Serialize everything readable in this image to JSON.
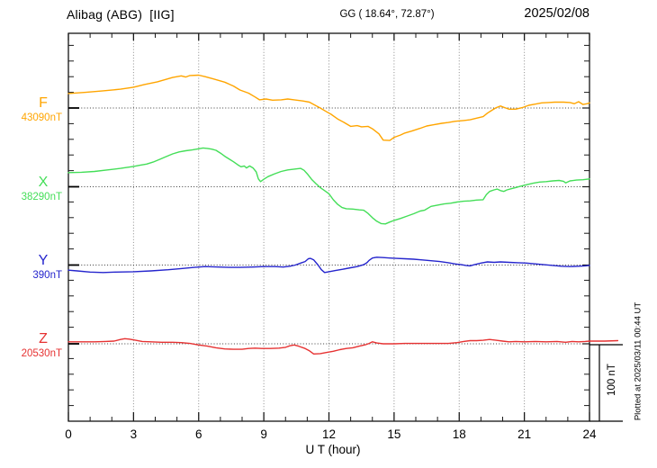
{
  "header": {
    "station_title": "Alibag (ABG)  [IIG]",
    "geo_coords": "GG ( 18.64°, 72.87°)",
    "date": "2025/02/08"
  },
  "footer_note": "Plotted at 2025/03/11 00:44 UT",
  "x_axis": {
    "label": "U T (hour)",
    "major_ticks": [
      0,
      3,
      6,
      9,
      12,
      15,
      18,
      21,
      24
    ],
    "minor_step_hours": 1,
    "range_hours": [
      0,
      24
    ]
  },
  "scale_bar": {
    "label": "100 nT",
    "span_nT": 100
  },
  "colors": {
    "frame": "#000000",
    "grid_dots": "#8a8a8a",
    "baseline_dots": "#3a3a3a",
    "tick": "#1a1a1a"
  },
  "chart_data": {
    "type": "line",
    "title": "Alibag (ABG) [IIG] magnetogram for 2025/02/08",
    "xlabel": "U T (hour)",
    "x_range": [
      0,
      24
    ],
    "x_units": "UT hours",
    "y_units": "nT offset from each component baseline",
    "scale_bar_nT": 100,
    "grid": "dotted vertical lines every 3 hours; dotted horizontal baseline per component",
    "legend_position": "left margin, one colored label per component",
    "series": [
      {
        "name": "F",
        "baseline_nT": 43090,
        "baseline_label": "43090nT",
        "color": "#FFA500",
        "points": [
          [
            0,
            18.5
          ],
          [
            0.8,
            20
          ],
          [
            1.6,
            22
          ],
          [
            2.4,
            24
          ],
          [
            3,
            26.5
          ],
          [
            3.5,
            30
          ],
          [
            4.1,
            33.5
          ],
          [
            4.8,
            39
          ],
          [
            5.2,
            41
          ],
          [
            5.4,
            39.5
          ],
          [
            5.6,
            41.5
          ],
          [
            6,
            42
          ],
          [
            6.3,
            40
          ],
          [
            6.7,
            37
          ],
          [
            7.2,
            33
          ],
          [
            7.6,
            28
          ],
          [
            7.9,
            23
          ],
          [
            8.3,
            19
          ],
          [
            8.6,
            14
          ],
          [
            8.8,
            10.5
          ],
          [
            9.1,
            11.5
          ],
          [
            9.4,
            10
          ],
          [
            9.8,
            10.5
          ],
          [
            10.1,
            11.5
          ],
          [
            10.4,
            10.5
          ],
          [
            10.8,
            9
          ],
          [
            11.1,
            7.5
          ],
          [
            11.3,
            4.5
          ],
          [
            11.6,
            0
          ],
          [
            11.9,
            -5
          ],
          [
            12.1,
            -8
          ],
          [
            12.4,
            -14
          ],
          [
            12.7,
            -18.5
          ],
          [
            13,
            -23.5
          ],
          [
            13.3,
            -22.5
          ],
          [
            13.5,
            -24
          ],
          [
            13.8,
            -23.5
          ],
          [
            14,
            -26.5
          ],
          [
            14.3,
            -33
          ],
          [
            14.5,
            -41
          ],
          [
            14.8,
            -41.5
          ],
          [
            15,
            -37.5
          ],
          [
            15.3,
            -34.5
          ],
          [
            15.5,
            -32
          ],
          [
            15.8,
            -29.5
          ],
          [
            16.2,
            -26
          ],
          [
            16.5,
            -23
          ],
          [
            16.8,
            -21.5
          ],
          [
            17.2,
            -19.5
          ],
          [
            17.5,
            -18.5
          ],
          [
            17.8,
            -17
          ],
          [
            18.2,
            -16
          ],
          [
            18.5,
            -15
          ],
          [
            18.8,
            -13
          ],
          [
            19.1,
            -11
          ],
          [
            19.3,
            -6.5
          ],
          [
            19.5,
            -3
          ],
          [
            19.7,
            0.5
          ],
          [
            19.9,
            2.5
          ],
          [
            20.1,
            0.5
          ],
          [
            20.3,
            -1.5
          ],
          [
            20.6,
            -1.5
          ],
          [
            20.9,
            0.5
          ],
          [
            21.2,
            3.5
          ],
          [
            21.5,
            5
          ],
          [
            21.8,
            6.5
          ],
          [
            22.1,
            7
          ],
          [
            22.4,
            7.5
          ],
          [
            22.8,
            7.5
          ],
          [
            23.1,
            7
          ],
          [
            23.3,
            5.5
          ],
          [
            23.5,
            8
          ],
          [
            23.7,
            4.5
          ],
          [
            23.9,
            5.5
          ],
          [
            24,
            6.5
          ]
        ]
      },
      {
        "name": "X",
        "baseline_nT": 38290,
        "baseline_label": "38290nT",
        "color": "#44DE58",
        "points": [
          [
            0,
            18
          ],
          [
            0.6,
            18.5
          ],
          [
            1.2,
            19.5
          ],
          [
            1.8,
            21.5
          ],
          [
            2.4,
            23.5
          ],
          [
            3,
            26
          ],
          [
            3.3,
            27.5
          ],
          [
            3.6,
            29
          ],
          [
            3.9,
            31.5
          ],
          [
            4.2,
            35
          ],
          [
            4.5,
            38.5
          ],
          [
            4.8,
            42
          ],
          [
            5.1,
            44.5
          ],
          [
            5.4,
            46
          ],
          [
            5.7,
            47
          ],
          [
            6,
            48.5
          ],
          [
            6.2,
            49.5
          ],
          [
            6.4,
            49
          ],
          [
            6.6,
            48
          ],
          [
            6.8,
            46.5
          ],
          [
            7,
            43
          ],
          [
            7.2,
            39
          ],
          [
            7.4,
            35.5
          ],
          [
            7.6,
            32
          ],
          [
            7.8,
            28
          ],
          [
            7.95,
            25.5
          ],
          [
            8.1,
            26.5
          ],
          [
            8.2,
            24
          ],
          [
            8.35,
            26.5
          ],
          [
            8.5,
            24
          ],
          [
            8.65,
            19
          ],
          [
            8.75,
            10
          ],
          [
            8.85,
            6.5
          ],
          [
            9,
            9.5
          ],
          [
            9.2,
            13
          ],
          [
            9.5,
            16.5
          ],
          [
            9.8,
            19.5
          ],
          [
            10.1,
            21.5
          ],
          [
            10.4,
            22.5
          ],
          [
            10.7,
            23.5
          ],
          [
            10.85,
            21
          ],
          [
            11,
            16.5
          ],
          [
            11.2,
            9.5
          ],
          [
            11.4,
            4
          ],
          [
            11.6,
            -1
          ],
          [
            11.8,
            -5
          ],
          [
            12,
            -9
          ],
          [
            12.2,
            -16.5
          ],
          [
            12.4,
            -22.5
          ],
          [
            12.6,
            -26.5
          ],
          [
            12.8,
            -28
          ],
          [
            13.1,
            -28.5
          ],
          [
            13.4,
            -29.5
          ],
          [
            13.6,
            -30
          ],
          [
            13.8,
            -34
          ],
          [
            14,
            -39.5
          ],
          [
            14.2,
            -44
          ],
          [
            14.4,
            -47
          ],
          [
            14.6,
            -47.5
          ],
          [
            14.8,
            -45
          ],
          [
            15,
            -43
          ],
          [
            15.3,
            -40.5
          ],
          [
            15.6,
            -37.5
          ],
          [
            15.9,
            -34.5
          ],
          [
            16.2,
            -31
          ],
          [
            16.4,
            -30
          ],
          [
            16.7,
            -25
          ],
          [
            17,
            -23.5
          ],
          [
            17.3,
            -22
          ],
          [
            17.6,
            -21
          ],
          [
            17.9,
            -19.5
          ],
          [
            18.2,
            -18.5
          ],
          [
            18.5,
            -18
          ],
          [
            18.8,
            -17
          ],
          [
            19.1,
            -16.5
          ],
          [
            19.25,
            -10
          ],
          [
            19.4,
            -6
          ],
          [
            19.6,
            -4
          ],
          [
            19.75,
            -3
          ],
          [
            19.9,
            -5
          ],
          [
            20.05,
            -6
          ],
          [
            20.2,
            -4
          ],
          [
            20.4,
            -2.5
          ],
          [
            20.6,
            -1
          ],
          [
            20.8,
            0.5
          ],
          [
            21.1,
            2.5
          ],
          [
            21.4,
            4.5
          ],
          [
            21.7,
            6
          ],
          [
            22,
            6.5
          ],
          [
            22.3,
            7.5
          ],
          [
            22.6,
            8
          ],
          [
            22.8,
            7
          ],
          [
            22.9,
            5
          ],
          [
            23.1,
            7.5
          ],
          [
            23.4,
            8.5
          ],
          [
            23.7,
            9
          ],
          [
            24,
            10
          ]
        ]
      },
      {
        "name": "Y",
        "baseline_nT": 390,
        "baseline_label": "390nT",
        "color": "#2525CD",
        "points": [
          [
            0,
            -6.5
          ],
          [
            0.4,
            -7.5
          ],
          [
            1,
            -9
          ],
          [
            1.6,
            -9.5
          ],
          [
            2.2,
            -9
          ],
          [
            3,
            -8.5
          ],
          [
            3.8,
            -7.5
          ],
          [
            4.6,
            -6
          ],
          [
            5.2,
            -4.5
          ],
          [
            5.8,
            -3
          ],
          [
            6.3,
            -2
          ],
          [
            6.9,
            -2.5
          ],
          [
            7.4,
            -3
          ],
          [
            7.9,
            -3
          ],
          [
            8.5,
            -2.5
          ],
          [
            9,
            -2
          ],
          [
            9.5,
            -2
          ],
          [
            9.9,
            -2.5
          ],
          [
            10.2,
            -1.5
          ],
          [
            10.45,
            0
          ],
          [
            10.7,
            2.5
          ],
          [
            10.9,
            4.5
          ],
          [
            11.05,
            8
          ],
          [
            11.15,
            8.5
          ],
          [
            11.3,
            6.5
          ],
          [
            11.5,
            0
          ],
          [
            11.65,
            -6
          ],
          [
            11.8,
            -9.5
          ],
          [
            12,
            -8.5
          ],
          [
            12.3,
            -7
          ],
          [
            12.6,
            -5.5
          ],
          [
            13,
            -3.5
          ],
          [
            13.3,
            -2
          ],
          [
            13.6,
            0.5
          ],
          [
            13.75,
            3
          ],
          [
            13.85,
            6
          ],
          [
            14,
            9
          ],
          [
            14.2,
            10
          ],
          [
            14.5,
            9.5
          ],
          [
            14.8,
            9
          ],
          [
            15.1,
            8.5
          ],
          [
            15.5,
            8
          ],
          [
            15.9,
            7.5
          ],
          [
            16.3,
            6.5
          ],
          [
            16.7,
            5.5
          ],
          [
            17.1,
            4.5
          ],
          [
            17.5,
            3
          ],
          [
            17.8,
            1.5
          ],
          [
            18.1,
            0.5
          ],
          [
            18.3,
            -0.5
          ],
          [
            18.5,
            -1
          ],
          [
            18.7,
            0.5
          ],
          [
            19,
            2.5
          ],
          [
            19.3,
            4
          ],
          [
            19.6,
            3.5
          ],
          [
            19.9,
            4
          ],
          [
            20.3,
            3.5
          ],
          [
            20.7,
            3
          ],
          [
            21.1,
            2.5
          ],
          [
            21.5,
            1.5
          ],
          [
            21.9,
            0.5
          ],
          [
            22.3,
            -0.5
          ],
          [
            22.7,
            -1.5
          ],
          [
            23.1,
            -2
          ],
          [
            23.5,
            -1.5
          ],
          [
            23.8,
            -1
          ],
          [
            24,
            -0.5
          ]
        ]
      },
      {
        "name": "Z",
        "baseline_nT": 20530,
        "baseline_label": "20530nT",
        "color": "#E63232",
        "points": [
          [
            0,
            2.5
          ],
          [
            0.6,
            2.5
          ],
          [
            1.2,
            2.5
          ],
          [
            1.7,
            3
          ],
          [
            2.1,
            3.5
          ],
          [
            2.4,
            5.5
          ],
          [
            2.6,
            6.5
          ],
          [
            2.8,
            6
          ],
          [
            3.1,
            4.5
          ],
          [
            3.4,
            3
          ],
          [
            3.8,
            2.5
          ],
          [
            4.3,
            2
          ],
          [
            4.8,
            2
          ],
          [
            5.2,
            1.5
          ],
          [
            5.6,
            0.5
          ],
          [
            6,
            -1.5
          ],
          [
            6.4,
            -3
          ],
          [
            6.8,
            -5
          ],
          [
            7.2,
            -6.5
          ],
          [
            7.6,
            -7
          ],
          [
            8,
            -7
          ],
          [
            8.3,
            -6
          ],
          [
            8.6,
            -5.5
          ],
          [
            8.9,
            -6
          ],
          [
            9.3,
            -6
          ],
          [
            9.7,
            -5.5
          ],
          [
            10,
            -4.5
          ],
          [
            10.2,
            -2.5
          ],
          [
            10.4,
            -1.5
          ],
          [
            10.6,
            -3
          ],
          [
            10.9,
            -6
          ],
          [
            11.1,
            -9
          ],
          [
            11.3,
            -13
          ],
          [
            11.6,
            -12.5
          ],
          [
            11.9,
            -11
          ],
          [
            12.2,
            -9.5
          ],
          [
            12.5,
            -7.5
          ],
          [
            12.8,
            -6
          ],
          [
            13.1,
            -5
          ],
          [
            13.4,
            -3
          ],
          [
            13.7,
            -1
          ],
          [
            13.85,
            0.5
          ],
          [
            14,
            2.5
          ],
          [
            14.2,
            1
          ],
          [
            14.5,
            0
          ],
          [
            15,
            0
          ],
          [
            15.5,
            0.5
          ],
          [
            16,
            0.5
          ],
          [
            16.5,
            0.5
          ],
          [
            17,
            0.5
          ],
          [
            17.5,
            0.5
          ],
          [
            17.9,
            1.5
          ],
          [
            18.2,
            3
          ],
          [
            18.5,
            4
          ],
          [
            18.8,
            4
          ],
          [
            19.1,
            4.5
          ],
          [
            19.4,
            5.5
          ],
          [
            19.7,
            4.5
          ],
          [
            20,
            3.5
          ],
          [
            20.3,
            2.5
          ],
          [
            20.6,
            3
          ],
          [
            21,
            2.5
          ],
          [
            21.5,
            3
          ],
          [
            22,
            2.5
          ],
          [
            22.5,
            3
          ],
          [
            22.9,
            2
          ],
          [
            23.2,
            3
          ],
          [
            23.5,
            2.5
          ],
          [
            23.8,
            3
          ],
          [
            24,
            3.5
          ],
          [
            24.7,
            3.5
          ],
          [
            25.3,
            4
          ]
        ]
      }
    ]
  }
}
